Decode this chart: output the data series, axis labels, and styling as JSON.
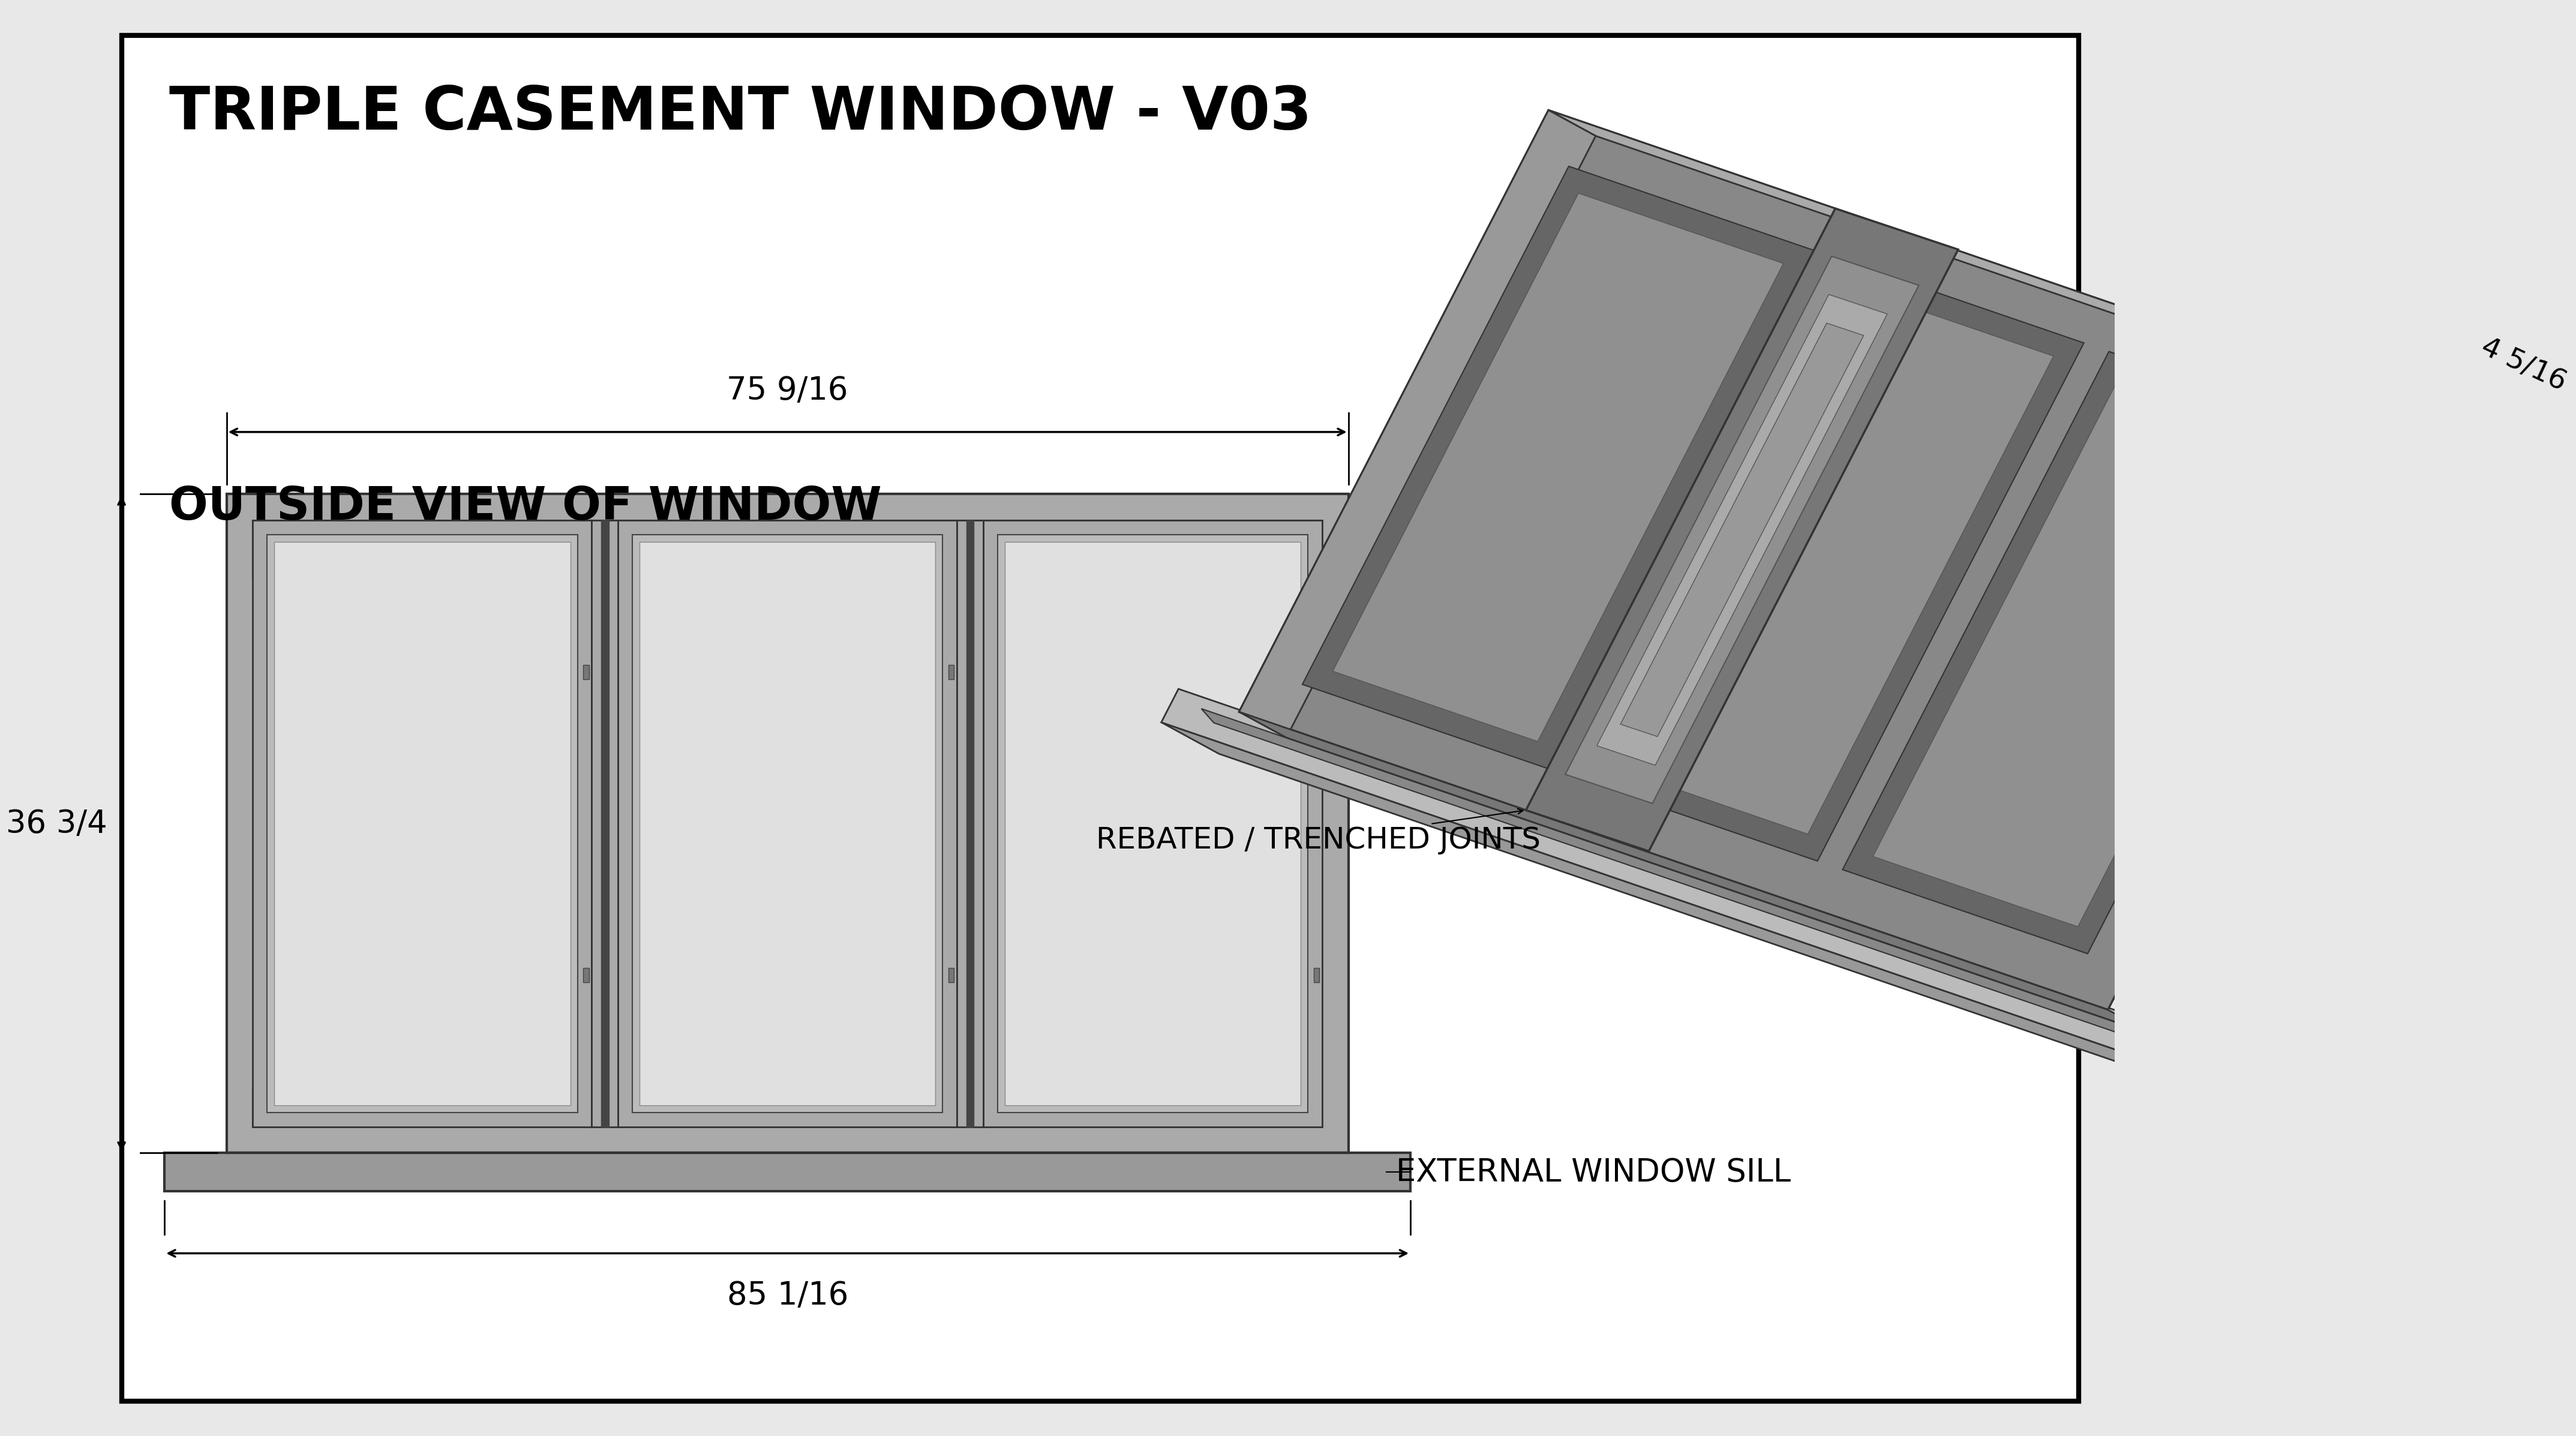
{
  "title": "TRIPLE CASEMENT WINDOW - V03",
  "bg_color": "#e8e8e8",
  "paper_color": "#ffffff",
  "border_color": "#000000",
  "outside_view_label": "OUTSIDE VIEW OF WINDOW",
  "dim_width_top": "75 9/16",
  "dim_width_bottom": "85 1/16",
  "dim_height": "36 3/4",
  "label_sill_3d": "EXTERNAL WINDOW SILL",
  "label_sill_2d": "EXTERNAL WINDOW SILL",
  "label_joints": "REBATED / TRENCHED JOINTS",
  "label_depth": "4 5/16",
  "c_frame_outer": "#888888",
  "c_frame_mid": "#aaaaaa",
  "c_frame_light": "#bbbbbb",
  "c_glass": "#d0d0d0",
  "c_glass_light": "#e0e0e0",
  "c_dark": "#444444",
  "c_darker": "#333333",
  "c_sill": "#999999",
  "c_3d_dark": "#555555",
  "c_3d_mid": "#777777",
  "c_3d_light": "#aaaaaa",
  "c_3d_glass": "#909090",
  "c_3d_glass2": "#ababab"
}
